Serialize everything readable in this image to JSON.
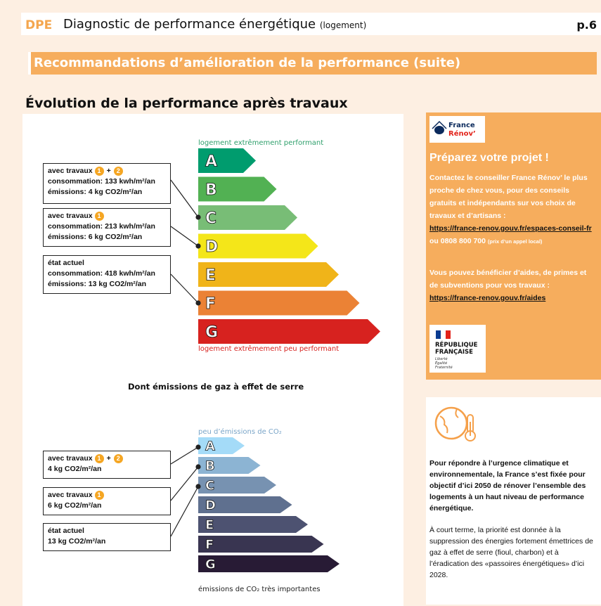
{
  "header": {
    "dpe": "DPE",
    "title": "Diagnostic de performance énergétique",
    "title_small": "(logement)",
    "page": "p.6"
  },
  "banner": "Recommandations d’amélioration de la performance (suite)",
  "section_title": "Évolution de la performance après travaux",
  "energy_chart": {
    "top_label": "logement extrêmement performant",
    "bottom_label": "logement extrêmement peu performant",
    "classes": [
      "A",
      "B",
      "C",
      "D",
      "E",
      "F",
      "G"
    ],
    "colors": [
      "#009c6e",
      "#52b153",
      "#78bd76",
      "#f4e619",
      "#f0b419",
      "#eb8235",
      "#d7221f"
    ]
  },
  "energy_states": [
    {
      "title": "avec travaux",
      "badges": [
        "1",
        "2"
      ],
      "plus": "+",
      "line1": "consommation: 133 kwh/m²/an",
      "line2": "émissions: 4 kg CO2/m²/an"
    },
    {
      "title": "avec travaux",
      "badges": [
        "1"
      ],
      "line1": "consommation: 213 kwh/m²/an",
      "line2": "émissions: 6 kg CO2/m²/an"
    },
    {
      "title": "état actuel",
      "badges": [],
      "line1": "consommation:   418 kwh/m²/an",
      "line2": "émissions: 13 kg CO2/m²/an"
    }
  ],
  "ges_title": "Dont émissions de gaz à effet de serre",
  "ges_chart": {
    "top_label": "peu d’émissions de CO₂",
    "bottom_label": "émissions de CO₂ très importantes",
    "classes": [
      "A",
      "B",
      "C",
      "D",
      "E",
      "F",
      "G"
    ],
    "colors": [
      "#a4dbf8",
      "#8cb4d3",
      "#7792b1",
      "#5f708f",
      "#4d5271",
      "#393551",
      "#281b35"
    ]
  },
  "ges_states": [
    {
      "title": "avec travaux",
      "badges": [
        "1",
        "2"
      ],
      "plus": "+",
      "line1": "4 kg CO2/m²/an"
    },
    {
      "title": "avec travaux",
      "badges": [
        "1"
      ],
      "line1": "6 kg CO2/m²/an"
    },
    {
      "title": "état actuel",
      "badges": [],
      "line1": "13 kg CO2/m²/an"
    }
  ],
  "france_renov": {
    "logo_line1": "France",
    "logo_line2": "Rénov’",
    "title": "Préparez votre projet !",
    "p1": "Contactez le conseiller France Rénov’ le plus proche de chez vous, pour des conseils gratuits et indépendants sur vos choix de travaux et d’artisans :",
    "link1": "https://france-renov.gouv.fr/espaces-conseil-fr",
    "phone": "ou 0808 800 700",
    "phone_note": "(prix d’un appel local)",
    "p2": "Vous pouvez bénéficier d’aides, de primes et de subventions pour vos travaux :",
    "link2": "https://france-renov.gouv.fr/aides",
    "rf_line1": "RÉPUBLIQUE",
    "rf_line2": "FRANÇAISE",
    "rf_motto1": "Liberté",
    "rf_motto2": "Égalité",
    "rf_motto3": "Fraternité"
  },
  "info": {
    "p1": "Pour répondre à l’urgence climatique et environnementale, la France s’est fixée pour objectif d’ici 2050 de rénover l’ensemble des logements à un haut niveau de performance énergétique.",
    "p2": "À court terme, la priorité est donnée à la suppression des énergies fortement émettrices de gaz à effet de serre (fioul, charbon) et à l’éradication des «passoires énergétiques» d’ici 2028."
  }
}
